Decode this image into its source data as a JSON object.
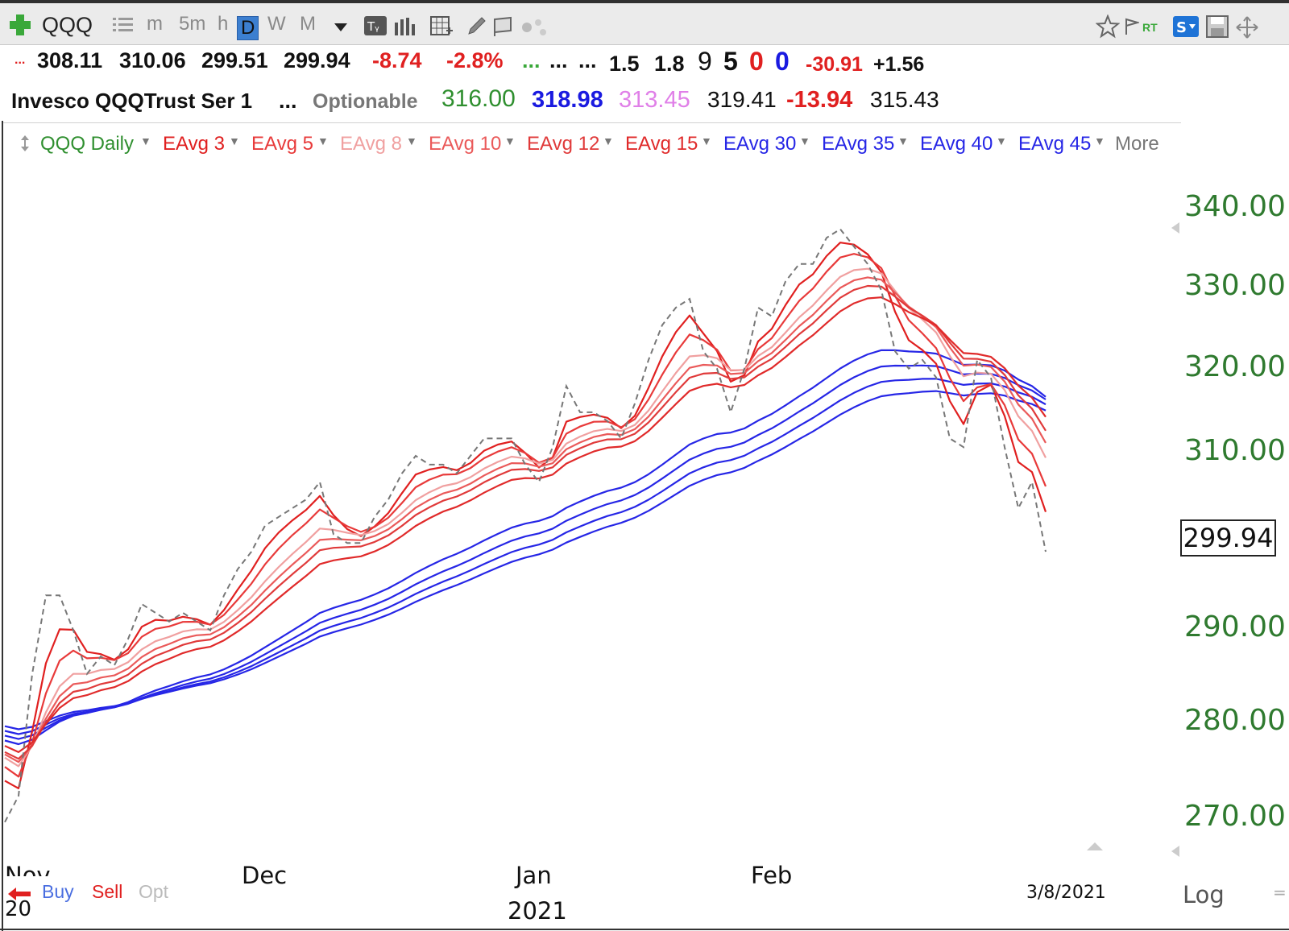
{
  "toolbar": {
    "symbol": "QQQ",
    "timeframes": [
      "m",
      "5m",
      "h",
      "D",
      "W",
      "M"
    ],
    "active_timeframe": "D",
    "rt_label": "RT",
    "icons": [
      "add-icon",
      "list-icon",
      "dropdown-icon",
      "text-icon",
      "bars-icon",
      "grid-icon",
      "pencil-icon",
      "flag-icon",
      "dots-icon",
      "star-icon",
      "flag-rt-icon",
      "s-icon",
      "save-icon",
      "move-icon"
    ]
  },
  "quote_row1": {
    "lead": "...",
    "open": "308.11",
    "high": "310.06",
    "low": "299.51",
    "close": "299.94",
    "change": "-8.74",
    "change_pct": "-2.8%",
    "ellipsis_green": "...",
    "ellipsis1": "...",
    "ellipsis2": "...",
    "v1": "1.5",
    "v2": "1.8",
    "v3": "9",
    "v4": "5",
    "v5": "0",
    "v6": "0",
    "v7": "-30.91",
    "v8": "+1.56"
  },
  "quote_row2": {
    "name": "Invesco QQQTrust Ser 1",
    "ellipsis": "...",
    "optionable": "Optionable",
    "p1": "316.00",
    "p2": "318.98",
    "p3": "313.45",
    "p4": "319.41",
    "p5": "-13.94",
    "p6": "315.43"
  },
  "legend": {
    "main": "QQQ Daily",
    "items": [
      "EAvg 3",
      "EAvg 5",
      "EAvg 8",
      "EAvg 10",
      "EAvg 12",
      "EAvg 15",
      "EAvg 30",
      "EAvg 35",
      "EAvg 40",
      "EAvg 45"
    ],
    "more": "More"
  },
  "colors": {
    "ema3": "#e02020",
    "ema5": "#e83a3a",
    "ema8": "#f0a0a0",
    "ema10": "#ea5a5a",
    "ema12": "#e03a3a",
    "ema15": "#e02a2a",
    "long": "#2626e6",
    "close": "#777777",
    "axis_label": "#2f7a2f"
  },
  "axis": {
    "y_labels": [
      "340.00",
      "330.00",
      "320.00",
      "310.00",
      "290.00",
      "280.00",
      "270.00"
    ],
    "current_price": "299.94",
    "x_labels": [
      "Nov",
      "Dec",
      "Jan",
      "Feb"
    ],
    "year_label": "2021",
    "year_label_left": "20",
    "date_label": "3/8/2021",
    "log_label": "Log"
  },
  "footer": {
    "buy": "Buy",
    "sell": "Sell",
    "opt": "Opt"
  },
  "chart_data": {
    "type": "line",
    "title": "QQQ Daily",
    "xlabel": "",
    "ylabel": "",
    "ylim": [
      264,
      345
    ],
    "x_range": [
      "2020-11-02",
      "2021-03-08"
    ],
    "grid": false,
    "legend_position": "top",
    "close_series": {
      "name": "QQQ Daily",
      "values": [
        269,
        272,
        286,
        295,
        295,
        291,
        286,
        288,
        287,
        290,
        294,
        293,
        292,
        293,
        292,
        291,
        295,
        298,
        300,
        303,
        304,
        305,
        306,
        308,
        302,
        301,
        301,
        304,
        306,
        309,
        311,
        310,
        310,
        309,
        311,
        313,
        313,
        313,
        310,
        308,
        312,
        319,
        316,
        316,
        315,
        313,
        317,
        322,
        326,
        328,
        329,
        323,
        321,
        316,
        321,
        328,
        327,
        331,
        333,
        333,
        336,
        337,
        335,
        333,
        330,
        323,
        321,
        322,
        320,
        313,
        312,
        322,
        320,
        312,
        305,
        308,
        300
      ]
    },
    "ema_series": [
      {
        "name": "EAvg 3",
        "period": 3
      },
      {
        "name": "EAvg 5",
        "period": 5
      },
      {
        "name": "EAvg 8",
        "period": 8
      },
      {
        "name": "EAvg 10",
        "period": 10
      },
      {
        "name": "EAvg 12",
        "period": 12
      },
      {
        "name": "EAvg 15",
        "period": 15
      },
      {
        "name": "EAvg 30",
        "period": 30
      },
      {
        "name": "EAvg 35",
        "period": 35
      },
      {
        "name": "EAvg 40",
        "period": 40
      },
      {
        "name": "EAvg 45",
        "period": 45
      }
    ],
    "ema_seed_values": [
      278.5,
      278.5,
      278.5,
      278.5,
      278.5,
      279.0,
      279.0,
      279.5,
      280.0,
      280.5
    ]
  }
}
